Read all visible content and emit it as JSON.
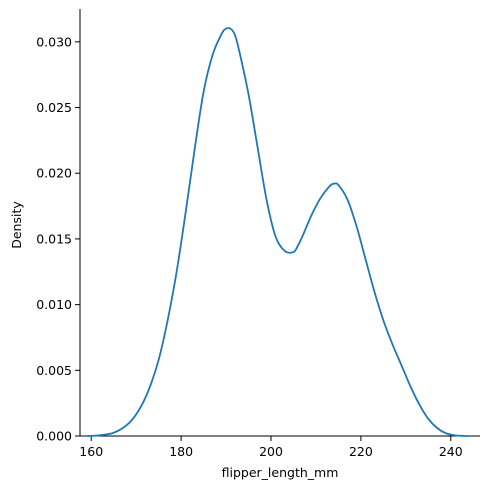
{
  "chart_data": {
    "type": "line",
    "title": "",
    "xlabel": "flipper_length_mm",
    "ylabel": "Density",
    "xlim": [
      157.5,
      246.5
    ],
    "ylim": [
      0,
      0.0325
    ],
    "xticks": [
      160,
      180,
      200,
      220,
      240
    ],
    "xtick_labels": [
      "160",
      "180",
      "200",
      "220",
      "240"
    ],
    "yticks": [
      0.0,
      0.005,
      0.01,
      0.015,
      0.02,
      0.025,
      0.03
    ],
    "ytick_labels": [
      "0.000",
      "0.005",
      "0.010",
      "0.015",
      "0.020",
      "0.025",
      "0.030"
    ],
    "grid": false,
    "legend": null,
    "series": [
      {
        "color": "#1f77b4",
        "x": [
          159,
          161,
          163,
          165,
          167,
          169,
          171,
          173,
          175,
          177,
          179,
          181,
          183,
          185,
          187,
          189,
          190,
          191,
          192,
          193,
          195,
          197,
          199,
          201,
          203,
          205,
          206,
          207,
          209,
          211,
          213,
          214,
          215,
          217,
          219,
          221,
          223,
          225,
          227,
          229,
          231,
          233,
          235,
          237,
          239,
          241,
          243,
          244
        ],
        "y": [
          0.0,
          3e-05,
          0.0001,
          0.00025,
          0.0006,
          0.0012,
          0.0022,
          0.0037,
          0.0058,
          0.0088,
          0.0125,
          0.017,
          0.0218,
          0.0262,
          0.029,
          0.0306,
          0.031,
          0.031,
          0.0305,
          0.0292,
          0.026,
          0.022,
          0.018,
          0.0152,
          0.0141,
          0.014,
          0.0145,
          0.0152,
          0.0168,
          0.0181,
          0.019,
          0.0192,
          0.0191,
          0.018,
          0.016,
          0.0135,
          0.011,
          0.0088,
          0.007,
          0.0054,
          0.0038,
          0.0024,
          0.0013,
          0.0006,
          0.0002,
          5e-05,
          1e-05,
          0.0
        ]
      }
    ]
  }
}
